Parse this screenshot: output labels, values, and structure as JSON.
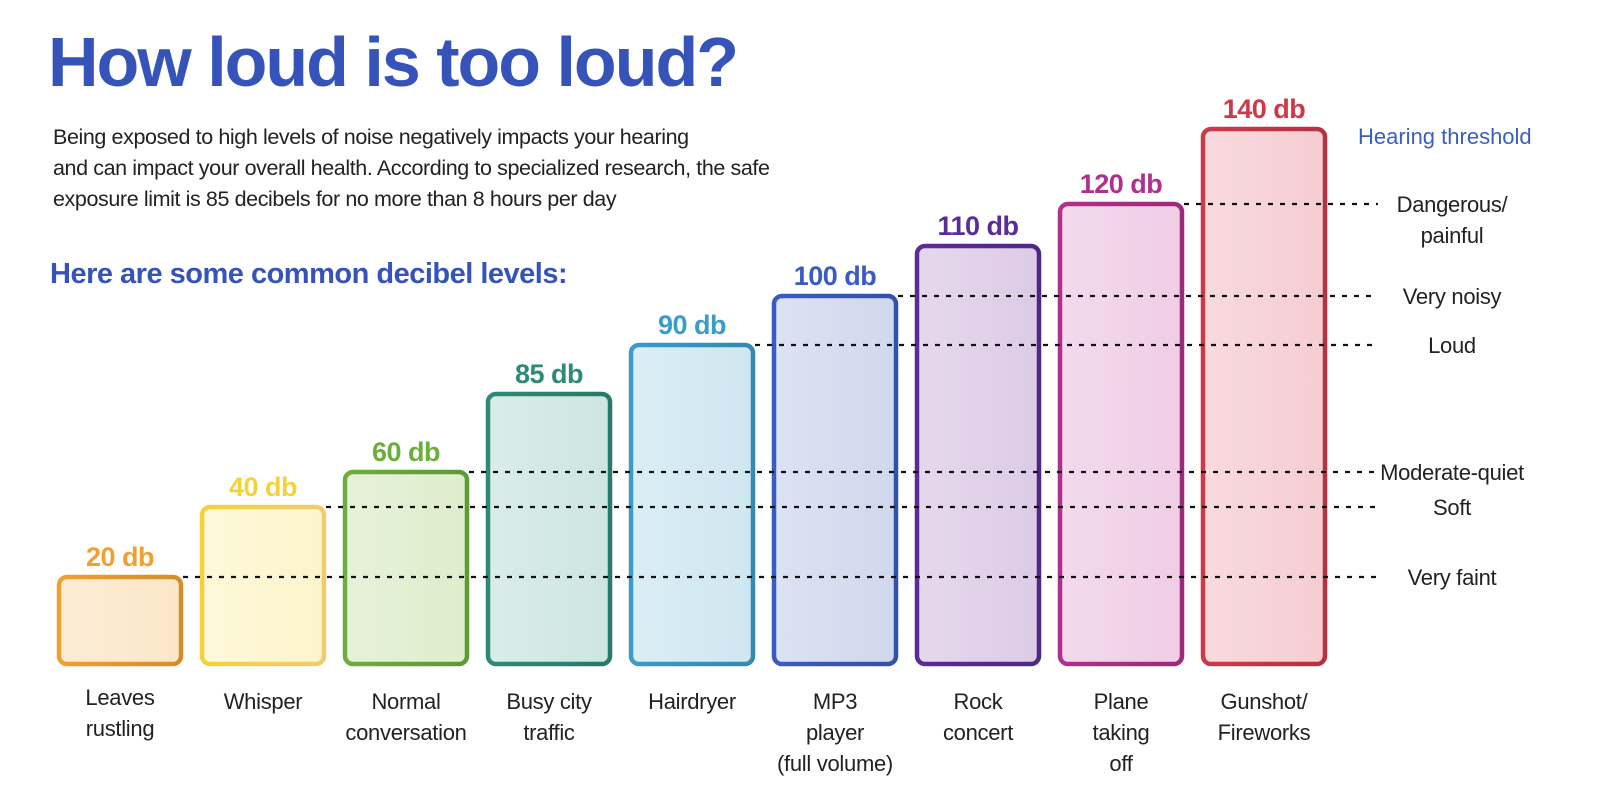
{
  "header": {
    "title": "How loud is too loud?",
    "intro_lines": [
      "Being exposed to high levels of noise negatively impacts your hearing",
      "and can impact your overall health. According to specialized research, the safe",
      "exposure limit is 85 decibels for no more than 8 hours per day"
    ],
    "subtitle": "Here are some common decibel levels:"
  },
  "chart_data": {
    "type": "bar",
    "title": "How loud is too loud?",
    "subtitle": "Here are some common decibel levels:",
    "unit": "db",
    "categories": [
      [
        "Leaves",
        "rustling"
      ],
      [
        "Whisper"
      ],
      [
        "Normal",
        "conversation"
      ],
      [
        "Busy city",
        "traffic"
      ],
      [
        "Hairdryer"
      ],
      [
        "MP3",
        "player",
        "(full volume)"
      ],
      [
        "Rock",
        "concert"
      ],
      [
        "Plane",
        "taking",
        "off"
      ],
      [
        "Gunshot/",
        "Fireworks"
      ]
    ],
    "values": [
      20,
      40,
      60,
      85,
      90,
      100,
      110,
      120,
      140
    ],
    "value_labels": [
      "20 db",
      "40 db",
      "60 db",
      "85 db",
      "90 db",
      "100 db",
      "110 db",
      "120 db",
      "140 db"
    ],
    "colors": [
      "#f0a030",
      "#f2d33a",
      "#6cae3c",
      "#2e8a78",
      "#3a9cc8",
      "#3a5cc0",
      "#5a2c98",
      "#b0308e",
      "#cc3a48"
    ],
    "fill_colors": [
      "#fbe6c8",
      "#fcf5cc",
      "#deedcc",
      "#cde6e0",
      "#cfe7f1",
      "#d0d8ee",
      "#dccbe6",
      "#efcde5",
      "#f5cdd3"
    ],
    "threshold_legend_title": "Hearing threshold",
    "thresholds": [
      {
        "label": [
          "Very faint"
        ],
        "value": 20
      },
      {
        "label": [
          "Soft"
        ],
        "value": 40
      },
      {
        "label": [
          "Moderate-quiet"
        ],
        "value": 60
      },
      {
        "label": [
          "Loud"
        ],
        "value": 90
      },
      {
        "label": [
          "Very noisy"
        ],
        "value": 100
      },
      {
        "label": [
          "Dangerous/",
          "painful"
        ],
        "value": 120
      }
    ],
    "ylim": [
      0,
      140
    ],
    "grid": false,
    "legend": "right"
  }
}
